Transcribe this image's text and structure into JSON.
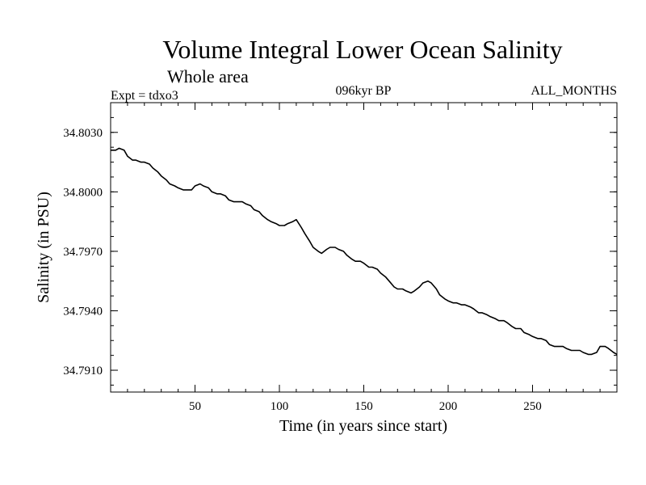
{
  "chart_data": {
    "type": "line",
    "title": "Volume Integral Lower Ocean Salinity",
    "subtitle": "Whole area",
    "left_label": "Expt = tdxo3",
    "center_label": "096kyr BP",
    "right_label": "ALL_MONTHS",
    "xlabel": "Time (in years since start)",
    "ylabel": "Salinity (in PSU)",
    "xlim": [
      0,
      300
    ],
    "ylim": [
      34.7899,
      34.8045
    ],
    "xticks": [
      50,
      100,
      150,
      200,
      250
    ],
    "xtick_labels": [
      "50",
      "100",
      "150",
      "200",
      "250"
    ],
    "yticks": [
      34.791,
      34.794,
      34.797,
      34.8,
      34.803
    ],
    "ytick_labels": [
      "34.7910",
      "34.7940",
      "34.7970",
      "34.8000",
      "34.8030"
    ],
    "line_color": "#000000",
    "grid": false,
    "series": [
      {
        "x": [
          0,
          3,
          5,
          8,
          10,
          13,
          15,
          18,
          20,
          23,
          25,
          28,
          30,
          33,
          35,
          38,
          40,
          43,
          45,
          48,
          50,
          53,
          55,
          58,
          60,
          63,
          65,
          68,
          70,
          73,
          75,
          78,
          80,
          83,
          85,
          88,
          90,
          93,
          95,
          98,
          100,
          103,
          105,
          108,
          110,
          113,
          115,
          118,
          120,
          123,
          125,
          128,
          130,
          133,
          135,
          138,
          140,
          143,
          145,
          148,
          150,
          153,
          155,
          158,
          160,
          163,
          165,
          168,
          170,
          173,
          175,
          178,
          180,
          183,
          185,
          188,
          190,
          193,
          195,
          198,
          200,
          203,
          205,
          208,
          210,
          213,
          215,
          218,
          220,
          223,
          225,
          228,
          230,
          233,
          235,
          238,
          240,
          243,
          245,
          248,
          250,
          253,
          255,
          258,
          260,
          263,
          265,
          268,
          270,
          273,
          275,
          278,
          280,
          283,
          285,
          288,
          290,
          293,
          295,
          298,
          300
        ],
        "values": [
          34.8021,
          34.8021,
          34.8022,
          34.8021,
          34.8018,
          34.8016,
          34.8016,
          34.8015,
          34.8015,
          34.8014,
          34.8012,
          34.801,
          34.8008,
          34.8006,
          34.8004,
          34.8003,
          34.8002,
          34.8001,
          34.8001,
          34.8001,
          34.8003,
          34.8004,
          34.8003,
          34.8002,
          34.8,
          34.7999,
          34.7999,
          34.7998,
          34.7996,
          34.7995,
          34.7995,
          34.7995,
          34.7994,
          34.7993,
          34.7991,
          34.799,
          34.7988,
          34.7986,
          34.7985,
          34.7984,
          34.7983,
          34.7983,
          34.7984,
          34.7985,
          34.7986,
          34.7982,
          34.7979,
          34.7975,
          34.7972,
          34.797,
          34.7969,
          34.7971,
          34.7972,
          34.7972,
          34.7971,
          34.797,
          34.7968,
          34.7966,
          34.7965,
          34.7965,
          34.7964,
          34.7962,
          34.7962,
          34.7961,
          34.7959,
          34.7957,
          34.7955,
          34.7952,
          34.7951,
          34.7951,
          34.795,
          34.7949,
          34.795,
          34.7952,
          34.7954,
          34.7955,
          34.7954,
          34.7951,
          34.7948,
          34.7946,
          34.7945,
          34.7944,
          34.7944,
          34.7943,
          34.7943,
          34.7942,
          34.7941,
          34.7939,
          34.7939,
          34.7938,
          34.7937,
          34.7936,
          34.7935,
          34.7935,
          34.7934,
          34.7932,
          34.7931,
          34.7931,
          34.7929,
          34.7928,
          34.7927,
          34.7926,
          34.7926,
          34.7925,
          34.7923,
          34.7922,
          34.7922,
          34.7922,
          34.7921,
          34.792,
          34.792,
          34.792,
          34.7919,
          34.7918,
          34.7918,
          34.7919,
          34.7922,
          34.7922,
          34.7921,
          34.7919,
          34.7918
        ]
      }
    ]
  }
}
